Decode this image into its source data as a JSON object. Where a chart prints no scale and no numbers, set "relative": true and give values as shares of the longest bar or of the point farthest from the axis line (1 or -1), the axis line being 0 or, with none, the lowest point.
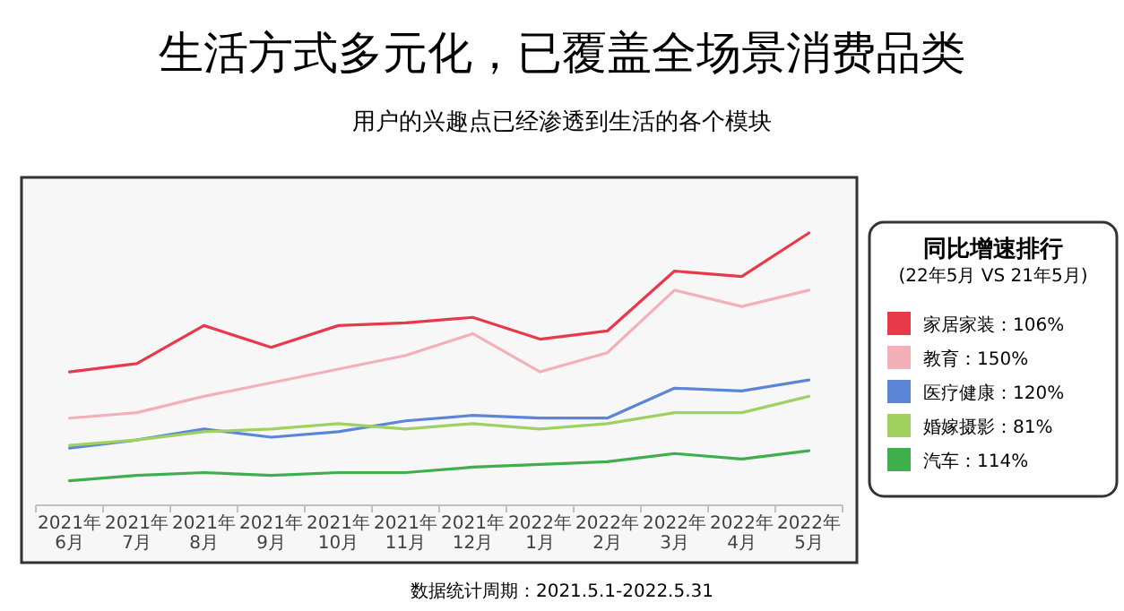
{
  "chart_data": {
    "type": "line",
    "title": "生活方式多元化，已覆盖全场景消费品类",
    "subtitle": "用户的兴趣点已经渗透到生活的各个模块",
    "categories": [
      "2021年6月",
      "2021年7月",
      "2021年8月",
      "2021年9月",
      "2021年10月",
      "2021年11月",
      "2021年12月",
      "2022年1月",
      "2022年2月",
      "2022年3月",
      "2022年4月",
      "2022年5月"
    ],
    "relative": true,
    "legend": "right",
    "legend_title": "同比增速排行",
    "series": [
      {
        "name": "家居家装：106%",
        "color": "#e8394a",
        "values": [
          0.49,
          0.52,
          0.66,
          0.58,
          0.66,
          0.67,
          0.69,
          0.61,
          0.64,
          0.86,
          0.84,
          1.0
        ]
      },
      {
        "name": "教育：150%",
        "color": "#f4b0b9",
        "values": [
          0.32,
          0.34,
          0.4,
          0.45,
          0.5,
          0.55,
          0.63,
          0.49,
          0.56,
          0.79,
          0.73,
          0.79
        ]
      },
      {
        "name": "医疗健康：120%",
        "color": "#5b86d6",
        "values": [
          0.21,
          0.24,
          0.28,
          0.25,
          0.27,
          0.31,
          0.33,
          0.32,
          0.32,
          0.43,
          0.42,
          0.46
        ]
      },
      {
        "name": "婚嫁摄影：81%",
        "color": "#9fd060",
        "values": [
          0.22,
          0.24,
          0.27,
          0.28,
          0.3,
          0.28,
          0.3,
          0.28,
          0.3,
          0.34,
          0.34,
          0.4
        ]
      },
      {
        "name": "汽车：114%",
        "color": "#3fae4d",
        "values": [
          0.09,
          0.11,
          0.12,
          0.11,
          0.12,
          0.12,
          0.14,
          0.15,
          0.16,
          0.19,
          0.17,
          0.2
        ]
      }
    ],
    "annotations": [
      "(22年5月 VS 21年5月)",
      "数据统计周期：2021.5.1-2022.5.31"
    ]
  }
}
